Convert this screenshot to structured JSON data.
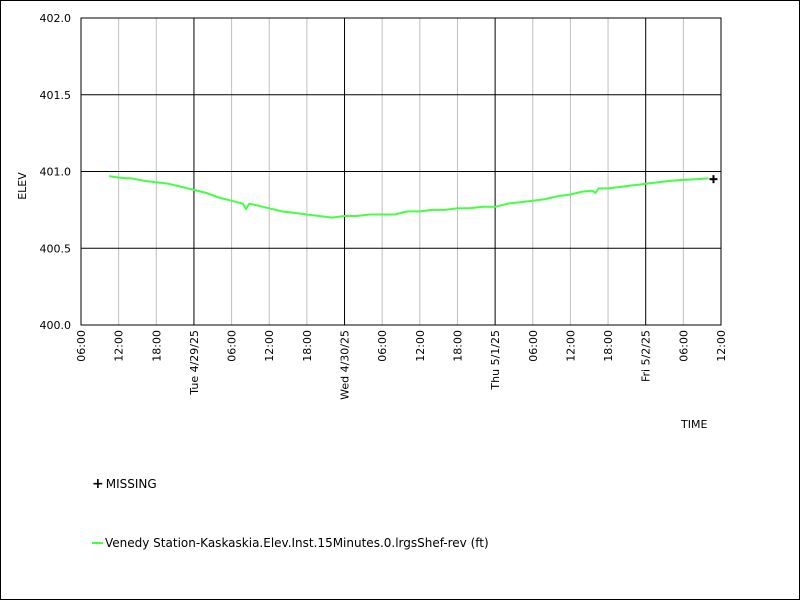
{
  "chart_data": {
    "type": "line",
    "ylabel": "ELEV",
    "xlabel": "TIME",
    "ylim": [
      400.0,
      402.0
    ],
    "y_ticks": [
      "400.0",
      "400.5",
      "401.0",
      "401.5",
      "402.0"
    ],
    "x_ticks": [
      {
        "h": 0,
        "label": "06:00"
      },
      {
        "h": 6,
        "label": "12:00"
      },
      {
        "h": 12,
        "label": "18:00"
      },
      {
        "h": 18,
        "label": "Tue 4/29/25"
      },
      {
        "h": 24,
        "label": "06:00"
      },
      {
        "h": 30,
        "label": "12:00"
      },
      {
        "h": 36,
        "label": "18:00"
      },
      {
        "h": 42,
        "label": "Wed 4/30/25"
      },
      {
        "h": 48,
        "label": "06:00"
      },
      {
        "h": 54,
        "label": "12:00"
      },
      {
        "h": 60,
        "label": "18:00"
      },
      {
        "h": 66,
        "label": "Thu 5/1/25"
      },
      {
        "h": 72,
        "label": "06:00"
      },
      {
        "h": 78,
        "label": "12:00"
      },
      {
        "h": 84,
        "label": "18:00"
      },
      {
        "h": 90,
        "label": "Fri 5/2/25"
      },
      {
        "h": 96,
        "label": "06:00"
      },
      {
        "h": 102,
        "label": "12:00"
      }
    ],
    "major_x": [
      18,
      42,
      66,
      90
    ],
    "xlim": [
      0,
      102
    ],
    "grid": true,
    "series": [
      {
        "name": "Venedy Station-Kaskaskia.Elev.Inst.15Minutes.0.lrgsShef-rev (ft)",
        "color": "#44ff44",
        "points": [
          [
            4.5,
            400.97
          ],
          [
            6,
            400.96
          ],
          [
            8,
            400.955
          ],
          [
            10,
            400.94
          ],
          [
            12,
            400.93
          ],
          [
            14,
            400.92
          ],
          [
            16,
            400.9
          ],
          [
            18,
            400.88
          ],
          [
            20,
            400.86
          ],
          [
            22,
            400.83
          ],
          [
            24,
            400.81
          ],
          [
            25.8,
            400.79
          ],
          [
            26.3,
            400.755
          ],
          [
            26.8,
            400.79
          ],
          [
            28,
            400.78
          ],
          [
            30,
            400.76
          ],
          [
            32,
            400.74
          ],
          [
            34,
            400.73
          ],
          [
            36,
            400.72
          ],
          [
            38,
            400.71
          ],
          [
            40,
            400.7
          ],
          [
            42,
            400.71
          ],
          [
            44,
            400.71
          ],
          [
            46,
            400.72
          ],
          [
            48,
            400.72
          ],
          [
            50,
            400.72
          ],
          [
            52,
            400.74
          ],
          [
            54,
            400.74
          ],
          [
            56,
            400.75
          ],
          [
            58,
            400.75
          ],
          [
            60,
            400.76
          ],
          [
            62,
            400.76
          ],
          [
            64,
            400.77
          ],
          [
            66,
            400.77
          ],
          [
            68,
            400.79
          ],
          [
            70,
            400.8
          ],
          [
            72,
            400.81
          ],
          [
            74,
            400.82
          ],
          [
            76,
            400.84
          ],
          [
            78,
            400.85
          ],
          [
            80,
            400.87
          ],
          [
            81.5,
            400.875
          ],
          [
            82,
            400.86
          ],
          [
            82.5,
            400.89
          ],
          [
            84,
            400.89
          ],
          [
            86,
            400.9
          ],
          [
            88,
            400.91
          ],
          [
            90,
            400.92
          ],
          [
            92,
            400.93
          ],
          [
            94,
            400.94
          ],
          [
            96,
            400.945
          ],
          [
            98,
            400.95
          ],
          [
            100,
            400.955
          ]
        ]
      }
    ],
    "missing_markers": [
      [
        100.8,
        400.95
      ]
    ],
    "legend": {
      "missing_label": "MISSING",
      "series_label": "Venedy Station-Kaskaskia.Elev.Inst.15Minutes.0.lrgsShef-rev (ft)"
    }
  }
}
